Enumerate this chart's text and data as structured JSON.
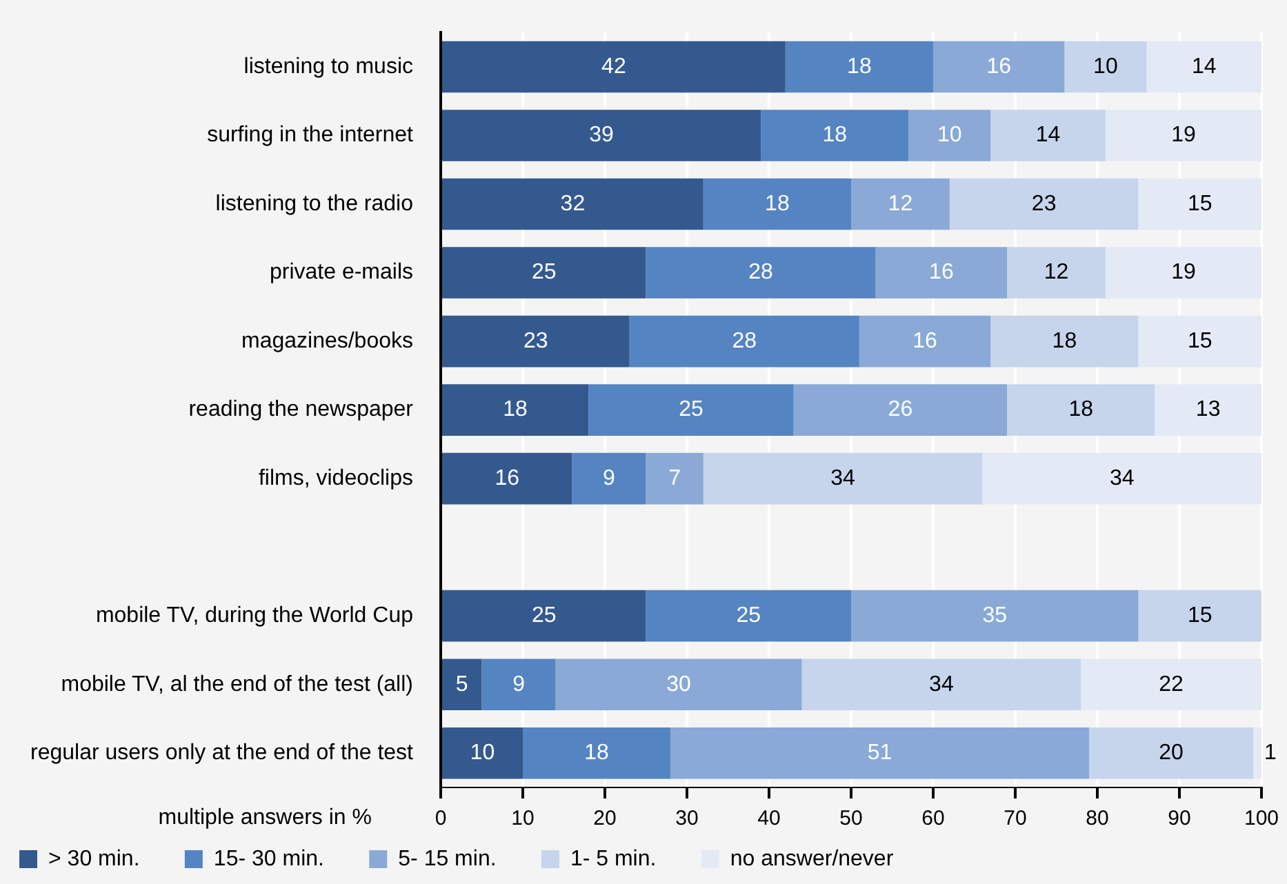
{
  "chart_data": {
    "type": "bar",
    "orientation": "horizontal",
    "stacked": true,
    "xlabel": "multiple answers in %",
    "categories": [
      "listening to music",
      "surfing in the internet",
      "listening to the radio",
      "private e-mails",
      "magazines/books",
      "reading the newspaper",
      "films, videoclips",
      null,
      "mobile TV, during the World Cup",
      "mobile TV, al the end of the test (all)",
      "regular users only at the end of the test"
    ],
    "series": [
      {
        "name": "> 30 min.",
        "color": "#34598f",
        "values": [
          42,
          39,
          32,
          25,
          23,
          18,
          16,
          null,
          25,
          5,
          10
        ]
      },
      {
        "name": "15- 30 min.",
        "color": "#5584c2",
        "values": [
          18,
          18,
          18,
          28,
          28,
          25,
          9,
          null,
          25,
          9,
          18
        ]
      },
      {
        "name": "5- 15 min.",
        "color": "#8aa9d6",
        "values": [
          16,
          10,
          12,
          16,
          16,
          26,
          7,
          null,
          35,
          30,
          51
        ]
      },
      {
        "name": "1- 5 min.",
        "color": "#c6d5ec",
        "values": [
          10,
          14,
          23,
          12,
          18,
          18,
          34,
          null,
          15,
          34,
          20
        ]
      },
      {
        "name": "no answer/never",
        "color": "#e4eaf5",
        "values": [
          14,
          19,
          15,
          19,
          15,
          13,
          34,
          null,
          null,
          22,
          1
        ]
      }
    ],
    "xlim": [
      0,
      100
    ],
    "xticks": [
      0,
      10,
      20,
      30,
      40,
      50,
      60,
      70,
      80,
      90,
      100
    ],
    "grid": "x",
    "legend": "bottom",
    "data_labels": true
  }
}
